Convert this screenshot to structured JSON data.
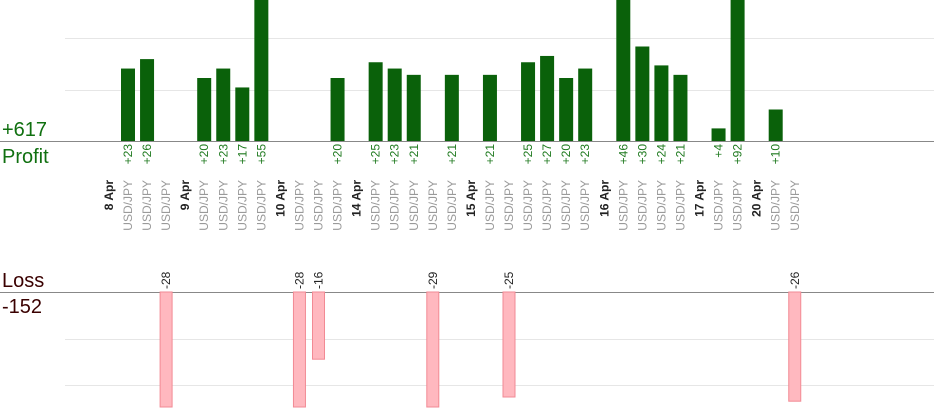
{
  "summary": {
    "profit_total": "+617",
    "profit_label": "Profit",
    "loss_label": "Loss",
    "loss_total": "-152"
  },
  "colors": {
    "profit_bar": "#0a610a",
    "profit_text": "#0f6e0f",
    "loss_bar": "#ffb8bf",
    "loss_bar_stroke": "#f28a94",
    "summary_profit_text": "#107010",
    "summary_loss_text": "#3a0000",
    "instrument_text": "#9a9a9a",
    "date_text": "#222222"
  },
  "chart_data": {
    "type": "bar",
    "instrument": "USD/JPY",
    "profit_range": [
      0,
      55
    ],
    "loss_range": [
      -28,
      0
    ],
    "columns": [
      {
        "date": "8 Apr"
      },
      {
        "pair": "USD/JPY",
        "value": 23,
        "label": "+23"
      },
      {
        "pair": "USD/JPY",
        "value": 26,
        "label": "+26"
      },
      {
        "pair": "USD/JPY",
        "value": -28,
        "label": "-28"
      },
      {
        "date": "9 Apr"
      },
      {
        "pair": "USD/JPY",
        "value": 20,
        "label": "+20"
      },
      {
        "pair": "USD/JPY",
        "value": 23,
        "label": "+23"
      },
      {
        "pair": "USD/JPY",
        "value": 17,
        "label": "+17"
      },
      {
        "pair": "USD/JPY",
        "value": 55,
        "label": "+55"
      },
      {
        "date": "10 Apr"
      },
      {
        "pair": "USD/JPY",
        "value": -28,
        "label": "-28"
      },
      {
        "pair": "USD/JPY",
        "value": -16,
        "label": "-16"
      },
      {
        "pair": "USD/JPY",
        "value": 20,
        "label": "+20"
      },
      {
        "date": "14 Apr"
      },
      {
        "pair": "USD/JPY",
        "value": 25,
        "label": "+25"
      },
      {
        "pair": "USD/JPY",
        "value": 23,
        "label": "+23"
      },
      {
        "pair": "USD/JPY",
        "value": 21,
        "label": "+21"
      },
      {
        "pair": "USD/JPY",
        "value": -29,
        "label": "-29"
      },
      {
        "pair": "USD/JPY",
        "value": 21,
        "label": "+21"
      },
      {
        "date": "15 Apr"
      },
      {
        "pair": "USD/JPY",
        "value": 21,
        "label": "+21"
      },
      {
        "pair": "USD/JPY",
        "value": -25,
        "label": "-25"
      },
      {
        "pair": "USD/JPY",
        "value": 25,
        "label": "+25"
      },
      {
        "pair": "USD/JPY",
        "value": 27,
        "label": "+27"
      },
      {
        "pair": "USD/JPY",
        "value": 20,
        "label": "+20"
      },
      {
        "pair": "USD/JPY",
        "value": 23,
        "label": "+23"
      },
      {
        "date": "16 Apr"
      },
      {
        "pair": "USD/JPY",
        "value": 46,
        "label": "+46"
      },
      {
        "pair": "USD/JPY",
        "value": 30,
        "label": "+30"
      },
      {
        "pair": "USD/JPY",
        "value": 24,
        "label": "+24"
      },
      {
        "pair": "USD/JPY",
        "value": 21,
        "label": "+21"
      },
      {
        "date": "17 Apr"
      },
      {
        "pair": "USD/JPY",
        "value": 4,
        "label": "+4"
      },
      {
        "pair": "USD/JPY",
        "value": 92,
        "label": "+92"
      },
      {
        "date": "20 Apr"
      },
      {
        "pair": "USD/JPY",
        "value": 10,
        "label": "+10"
      },
      {
        "pair": "USD/JPY",
        "value": -26,
        "label": "-26"
      }
    ]
  }
}
